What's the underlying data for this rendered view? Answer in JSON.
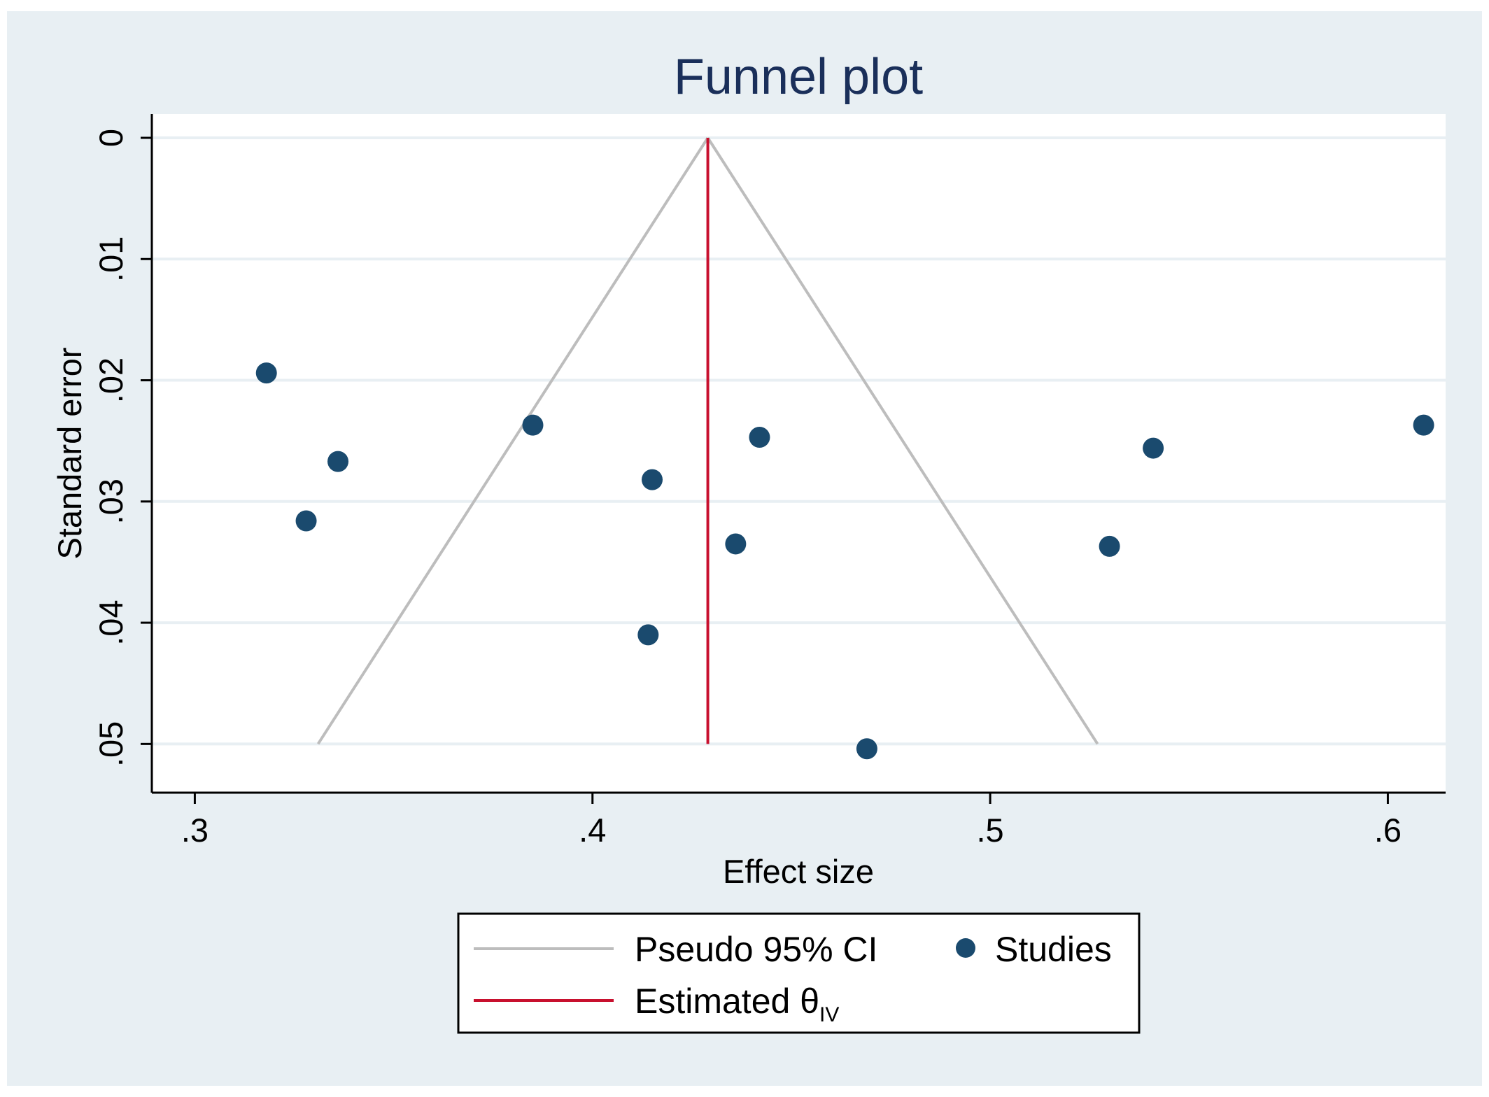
{
  "chart_data": {
    "type": "scatter",
    "title": "Funnel plot",
    "xlabel": "Effect size",
    "ylabel": "Standard error",
    "xlim": [
      0.295,
      0.614
    ],
    "ylim": [
      0,
      0.052
    ],
    "y_reversed": true,
    "grid": true,
    "x_ticks": [
      {
        "value": 0.3,
        "label": ".3"
      },
      {
        "value": 0.4,
        "label": ".4"
      },
      {
        "value": 0.5,
        "label": ".5"
      },
      {
        "value": 0.6,
        "label": ".6"
      }
    ],
    "y_ticks": [
      {
        "value": 0,
        "label": "0"
      },
      {
        "value": 0.01,
        "label": ".01"
      },
      {
        "value": 0.02,
        "label": ".02"
      },
      {
        "value": 0.03,
        "label": ".03"
      },
      {
        "value": 0.04,
        "label": ".04"
      },
      {
        "value": 0.05,
        "label": ".05"
      }
    ],
    "series": [
      {
        "name": "Studies",
        "kind": "points",
        "color": "#1a4a6e",
        "points": [
          {
            "x": 0.318,
            "y": 0.0194
          },
          {
            "x": 0.336,
            "y": 0.0267
          },
          {
            "x": 0.328,
            "y": 0.0316
          },
          {
            "x": 0.385,
            "y": 0.0237
          },
          {
            "x": 0.415,
            "y": 0.0282
          },
          {
            "x": 0.442,
            "y": 0.0247
          },
          {
            "x": 0.436,
            "y": 0.0335
          },
          {
            "x": 0.414,
            "y": 0.041
          },
          {
            "x": 0.469,
            "y": 0.0504
          },
          {
            "x": 0.53,
            "y": 0.0337
          },
          {
            "x": 0.541,
            "y": 0.0256
          },
          {
            "x": 0.609,
            "y": 0.0237
          }
        ]
      },
      {
        "name": "Pseudo 95% CI",
        "kind": "funnel",
        "color": "#bdbdbd",
        "lines": [
          [
            {
              "x": 0.429,
              "y": 0
            },
            {
              "x": 0.331,
              "y": 0.05
            }
          ],
          [
            {
              "x": 0.429,
              "y": 0
            },
            {
              "x": 0.527,
              "y": 0.05
            }
          ]
        ]
      },
      {
        "name": "Estimated θIV",
        "kind": "vline",
        "color": "#c8102e",
        "x": 0.429,
        "y_range": [
          0,
          0.05
        ]
      }
    ],
    "legend": {
      "placement": "bottom-center",
      "items": [
        {
          "label": "Pseudo 95% CI",
          "symbol": "line",
          "color": "#bdbdbd"
        },
        {
          "label": "Studies",
          "symbol": "dot",
          "color": "#1a4a6e"
        },
        {
          "label": "Estimated θ",
          "subscript": "IV",
          "symbol": "line",
          "color": "#c8102e"
        }
      ]
    },
    "colors": {
      "outer_background": "#e8eff3",
      "plot_background": "#ffffff",
      "grid": "#e8eff3",
      "title": "#1a2f5a",
      "axis": "#000000"
    }
  }
}
